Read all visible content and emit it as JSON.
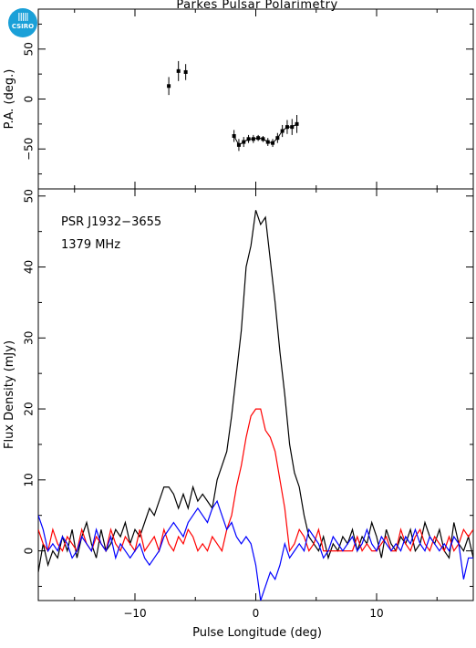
{
  "logo": {
    "text": "CSIRO",
    "color": "#1aa0d8"
  },
  "chart_data": [
    {
      "type": "scatter",
      "title": "Parkes Pulsar Polarimetry",
      "xlabel": "",
      "ylabel": "P.A. (deg.)",
      "xlim": [
        -18,
        18
      ],
      "ylim": [
        -90,
        90
      ],
      "yticks": [
        -50,
        0,
        50
      ],
      "grid": false,
      "points": [
        {
          "x": -7.2,
          "y": 13,
          "err": 9
        },
        {
          "x": -6.4,
          "y": 28,
          "err": 10
        },
        {
          "x": -5.8,
          "y": 27,
          "err": 8
        },
        {
          "x": -1.8,
          "y": -37,
          "err": 6
        },
        {
          "x": -1.4,
          "y": -46,
          "err": 6
        },
        {
          "x": -1.0,
          "y": -43,
          "err": 5
        },
        {
          "x": -0.6,
          "y": -40,
          "err": 4
        },
        {
          "x": -0.2,
          "y": -40,
          "err": 4
        },
        {
          "x": 0.2,
          "y": -39,
          "err": 3
        },
        {
          "x": 0.6,
          "y": -40,
          "err": 3
        },
        {
          "x": 1.0,
          "y": -43,
          "err": 4
        },
        {
          "x": 1.4,
          "y": -44,
          "err": 4
        },
        {
          "x": 1.8,
          "y": -39,
          "err": 5
        },
        {
          "x": 2.2,
          "y": -32,
          "err": 6
        },
        {
          "x": 2.6,
          "y": -28,
          "err": 7
        },
        {
          "x": 3.0,
          "y": -28,
          "err": 8
        },
        {
          "x": 3.4,
          "y": -25,
          "err": 9
        }
      ],
      "fit_line": [
        {
          "x": -1.8,
          "y": -37
        },
        {
          "x": -1.4,
          "y": -46
        },
        {
          "x": -1.0,
          "y": -43
        },
        {
          "x": -0.6,
          "y": -40
        },
        {
          "x": -0.2,
          "y": -40
        },
        {
          "x": 0.2,
          "y": -39
        },
        {
          "x": 0.6,
          "y": -40
        },
        {
          "x": 1.0,
          "y": -43
        },
        {
          "x": 1.4,
          "y": -44
        },
        {
          "x": 1.8,
          "y": -39
        },
        {
          "x": 2.2,
          "y": -32
        },
        {
          "x": 2.6,
          "y": -28
        },
        {
          "x": 3.0,
          "y": -28
        },
        {
          "x": 3.4,
          "y": -25
        }
      ]
    },
    {
      "type": "line",
      "title": "",
      "xlabel": "Pulse Longitude (deg)",
      "ylabel": "Flux Density (mJy)",
      "xlim": [
        -18,
        18
      ],
      "ylim": [
        -7,
        51
      ],
      "xticks": [
        -10,
        0,
        10
      ],
      "yticks": [
        0,
        10,
        20,
        30,
        40,
        50
      ],
      "grid": false,
      "annotations": [
        "PSR J1932−3655",
        "1379 MHz"
      ],
      "series": [
        {
          "color": "#000000",
          "x": [
            -18,
            -17.6,
            -17.2,
            -16.8,
            -16.4,
            -16,
            -15.6,
            -15.2,
            -14.8,
            -14.4,
            -14,
            -13.6,
            -13.2,
            -12.8,
            -12.4,
            -12,
            -11.6,
            -11.2,
            -10.8,
            -10.4,
            -10,
            -9.6,
            -9.2,
            -8.8,
            -8.4,
            -8,
            -7.6,
            -7.2,
            -6.8,
            -6.4,
            -6,
            -5.6,
            -5.2,
            -4.8,
            -4.4,
            -4,
            -3.6,
            -3.2,
            -2.8,
            -2.4,
            -2,
            -1.6,
            -1.2,
            -0.8,
            -0.4,
            0,
            0.4,
            0.8,
            1.2,
            1.6,
            2,
            2.4,
            2.8,
            3.2,
            3.6,
            4,
            4.4,
            4.8,
            5.2,
            5.6,
            6,
            6.4,
            6.8,
            7.2,
            7.6,
            8,
            8.4,
            8.8,
            9.2,
            9.6,
            10,
            10.4,
            10.8,
            11.2,
            11.6,
            12,
            12.4,
            12.8,
            13.2,
            13.6,
            14,
            14.4,
            14.8,
            15.2,
            15.6,
            16,
            16.4,
            16.8,
            17.2,
            17.6,
            18
          ],
          "y": [
            -3,
            1,
            -2,
            0,
            -1,
            2,
            0,
            3,
            -1,
            2,
            4,
            1,
            -1,
            3,
            0,
            1,
            3,
            2,
            4,
            1,
            3,
            2,
            4,
            6,
            5,
            7,
            9,
            9,
            8,
            6,
            8,
            6,
            9,
            7,
            8,
            7,
            6,
            10,
            12,
            14,
            19,
            25,
            31,
            40,
            43,
            48,
            46,
            47,
            41,
            35,
            28,
            22,
            15,
            11,
            9,
            5,
            2,
            1,
            0,
            2,
            -1,
            1,
            0,
            2,
            1,
            3,
            0,
            2,
            1,
            4,
            2,
            -1,
            3,
            1,
            0,
            2,
            1,
            3,
            0,
            1,
            4,
            2,
            1,
            3,
            0,
            -1,
            4,
            1,
            0,
            2,
            -1
          ]
        },
        {
          "color": "#ff0000",
          "x": [
            -18,
            -17.6,
            -17.2,
            -16.8,
            -16.4,
            -16,
            -15.6,
            -15.2,
            -14.8,
            -14.4,
            -14,
            -13.6,
            -13.2,
            -12.8,
            -12.4,
            -12,
            -11.6,
            -11.2,
            -10.8,
            -10.4,
            -10,
            -9.6,
            -9.2,
            -8.8,
            -8.4,
            -8,
            -7.6,
            -7.2,
            -6.8,
            -6.4,
            -6,
            -5.6,
            -5.2,
            -4.8,
            -4.4,
            -4,
            -3.6,
            -3.2,
            -2.8,
            -2.4,
            -2,
            -1.6,
            -1.2,
            -0.8,
            -0.4,
            0,
            0.4,
            0.8,
            1.2,
            1.6,
            2,
            2.4,
            2.8,
            3.2,
            3.6,
            4,
            4.4,
            4.8,
            5.2,
            5.6,
            6,
            6.4,
            6.8,
            7.2,
            7.6,
            8,
            8.4,
            8.8,
            9.2,
            9.6,
            10,
            10.4,
            10.8,
            11.2,
            11.6,
            12,
            12.4,
            12.8,
            13.2,
            13.6,
            14,
            14.4,
            14.8,
            15.2,
            15.6,
            16,
            16.4,
            16.8,
            17.2,
            17.6,
            18
          ],
          "y": [
            3,
            1,
            0,
            3,
            1,
            0,
            2,
            1,
            0,
            3,
            1,
            0,
            2,
            1,
            0,
            3,
            1,
            0,
            2,
            1,
            0,
            3,
            0,
            1,
            2,
            0,
            3,
            1,
            0,
            2,
            1,
            3,
            2,
            0,
            1,
            0,
            2,
            1,
            0,
            3,
            5,
            9,
            12,
            16,
            19,
            20,
            20,
            17,
            16,
            14,
            10,
            6,
            0,
            1,
            3,
            2,
            0,
            1,
            3,
            0,
            0,
            0,
            0,
            0,
            0,
            0,
            2,
            0,
            1,
            0,
            0,
            1,
            2,
            0,
            0,
            3,
            1,
            0,
            2,
            3,
            1,
            0,
            2,
            1,
            0,
            2,
            0,
            1,
            3,
            2,
            3
          ]
        },
        {
          "color": "#0000ff",
          "x": [
            -18,
            -17.6,
            -17.2,
            -16.8,
            -16.4,
            -16,
            -15.6,
            -15.2,
            -14.8,
            -14.4,
            -14,
            -13.6,
            -13.2,
            -12.8,
            -12.4,
            -12,
            -11.6,
            -11.2,
            -10.8,
            -10.4,
            -10,
            -9.6,
            -9.2,
            -8.8,
            -8.4,
            -8,
            -7.6,
            -7.2,
            -6.8,
            -6.4,
            -6,
            -5.6,
            -5.2,
            -4.8,
            -4.4,
            -4,
            -3.6,
            -3.2,
            -2.8,
            -2.4,
            -2,
            -1.6,
            -1.2,
            -0.8,
            -0.4,
            0,
            0.4,
            0.8,
            1.2,
            1.6,
            2,
            2.4,
            2.8,
            3.2,
            3.6,
            4,
            4.4,
            4.8,
            5.2,
            5.6,
            6,
            6.4,
            6.8,
            7.2,
            7.6,
            8,
            8.4,
            8.8,
            9.2,
            9.6,
            10,
            10.4,
            10.8,
            11.2,
            11.6,
            12,
            12.4,
            12.8,
            13.2,
            13.6,
            14,
            14.4,
            14.8,
            15.2,
            15.6,
            16,
            16.4,
            16.8,
            17.2,
            17.6,
            18
          ],
          "y": [
            5,
            3,
            0,
            1,
            0,
            2,
            1,
            -1,
            0,
            2,
            1,
            0,
            3,
            1,
            0,
            2,
            -1,
            1,
            0,
            -1,
            0,
            1,
            -1,
            -2,
            -1,
            0,
            2,
            3,
            4,
            3,
            2,
            4,
            5,
            6,
            5,
            4,
            6,
            7,
            5,
            3,
            4,
            2,
            1,
            2,
            1,
            -2,
            -7,
            -5,
            -3,
            -4,
            -2,
            1,
            -1,
            0,
            1,
            0,
            3,
            2,
            1,
            -1,
            0,
            2,
            1,
            0,
            1,
            2,
            0,
            1,
            3,
            1,
            0,
            2,
            1,
            0,
            1,
            0,
            2,
            1,
            3,
            1,
            0,
            2,
            1,
            0,
            1,
            0,
            2,
            1,
            -4,
            -1,
            -1
          ]
        }
      ]
    }
  ]
}
